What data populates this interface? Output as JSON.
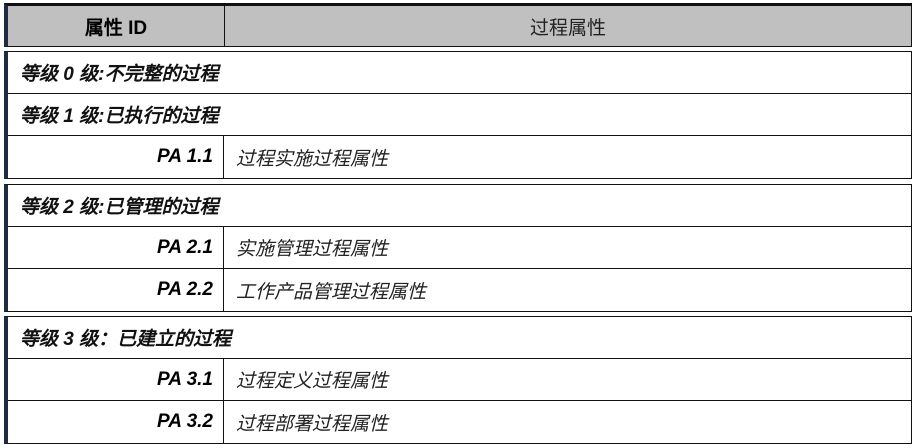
{
  "header": {
    "col1": "属性 ID",
    "col2": "过程属性"
  },
  "sections": [
    {
      "rows": [
        {
          "title": "等级 0 级:不完整的过程"
        },
        {
          "title": "等级 1 级:已执行的过程"
        },
        {
          "id": "PA 1.1",
          "name": "过程实施过程属性"
        }
      ]
    },
    {
      "rows": [
        {
          "title": "等级 2 级:已管理的过程"
        },
        {
          "id": "PA 2.1",
          "name": "实施管理过程属性"
        },
        {
          "id": "PA 2.2",
          "name": "工作产品管理过程属性"
        }
      ]
    },
    {
      "rows": [
        {
          "title": "等级 3 级：已建立的过程"
        },
        {
          "id": "PA 3.1",
          "name": "过程定义过程属性"
        },
        {
          "id": "PA 3.2",
          "name": "过程部署过程属性"
        }
      ]
    }
  ]
}
